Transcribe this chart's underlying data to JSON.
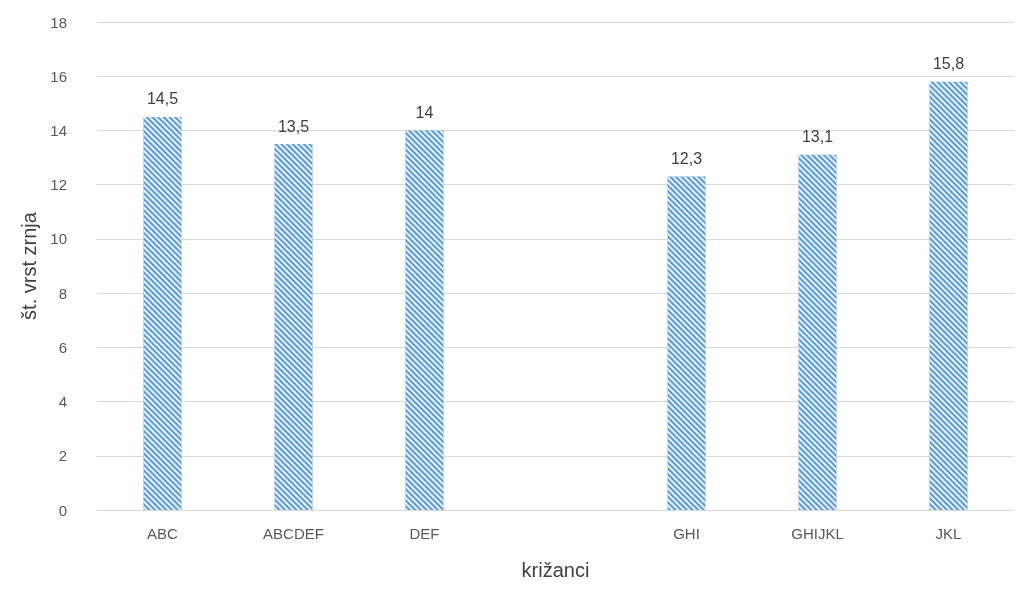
{
  "chart_data": {
    "type": "bar",
    "xlabel": "križanci",
    "ylabel": "št. vrst zrnja",
    "categories": [
      "ABC",
      "ABCDEF",
      "DEF",
      null,
      "GHI",
      "GHIJKL",
      "JKL"
    ],
    "values": [
      14.5,
      13.5,
      14,
      null,
      12.3,
      13.1,
      15.8
    ],
    "value_labels": [
      "14,5",
      "13,5",
      "14",
      null,
      "12,3",
      "13,1",
      "15,8"
    ],
    "color": "#5b9bd5",
    "ylim": [
      0,
      18
    ],
    "yticks": [
      0,
      2,
      4,
      6,
      8,
      10,
      12,
      14,
      16,
      18
    ],
    "grid": "y"
  }
}
